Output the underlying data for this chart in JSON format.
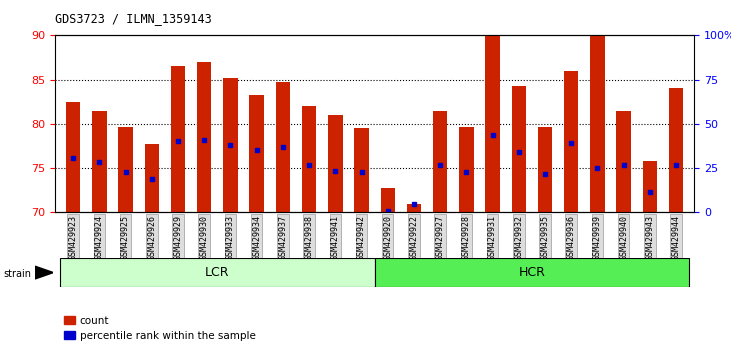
{
  "title": "GDS3723 / ILMN_1359143",
  "samples": [
    "GSM429923",
    "GSM429924",
    "GSM429925",
    "GSM429926",
    "GSM429929",
    "GSM429930",
    "GSM429933",
    "GSM429934",
    "GSM429937",
    "GSM429938",
    "GSM429941",
    "GSM429942",
    "GSM429920",
    "GSM429922",
    "GSM429927",
    "GSM429928",
    "GSM429931",
    "GSM429932",
    "GSM429935",
    "GSM429936",
    "GSM429939",
    "GSM429940",
    "GSM429943",
    "GSM429944"
  ],
  "count_values": [
    82.5,
    81.5,
    79.7,
    77.7,
    86.5,
    87.0,
    85.2,
    83.3,
    84.7,
    82.0,
    81.0,
    79.5,
    72.8,
    71.0,
    81.5,
    79.7,
    90.0,
    84.3,
    79.7,
    86.0,
    90.0,
    81.5,
    75.8,
    84.0
  ],
  "percentile_values": [
    76.2,
    75.7,
    74.6,
    73.8,
    78.1,
    78.2,
    77.6,
    77.0,
    77.4,
    75.4,
    74.7,
    74.6,
    70.2,
    71.0,
    75.3,
    74.6,
    78.8,
    76.8,
    74.3,
    77.8,
    75.0,
    75.3,
    72.3,
    75.3
  ],
  "groups": [
    {
      "label": "LCR",
      "start": 0,
      "end": 12,
      "color": "#ccffcc"
    },
    {
      "label": "HCR",
      "start": 12,
      "end": 24,
      "color": "#55ee55"
    }
  ],
  "ylim_left": [
    70,
    90
  ],
  "ylim_right": [
    0,
    100
  ],
  "yticks_left": [
    70,
    75,
    80,
    85,
    90
  ],
  "yticks_right": [
    0,
    25,
    50,
    75,
    100
  ],
  "bar_color": "#cc2200",
  "dot_color": "#0000cc",
  "bar_width": 0.55,
  "legend_count_label": "count",
  "legend_percentile_label": "percentile rank within the sample"
}
